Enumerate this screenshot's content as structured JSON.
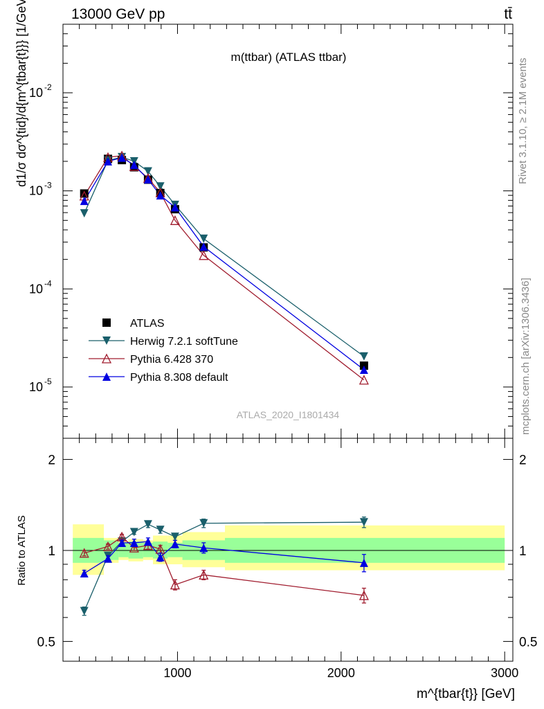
{
  "header": {
    "left": "13000 GeV pp",
    "right": "tt̄"
  },
  "side_labels": {
    "rivet": "Rivet 3.1.10, ≥ 2.1M events",
    "mcplots": "mcplots.cern.ch [arXiv:1306.3436]"
  },
  "chart_data": [
    {
      "type": "line",
      "panel": "main",
      "title": "m(ttbar) (ATLAS ttbar)",
      "ylabel": "d1/σ dσ^{tid}/d{m^{tbar{t}}} [1/GeV]",
      "watermark": "ATLAS_2020_I1801434",
      "yscale": "log",
      "ylim": [
        3e-06,
        0.05
      ],
      "xlim": [
        300,
        3050
      ],
      "ytick_labels": [
        "10^-2",
        "10^-3",
        "10^-4",
        "10^-5"
      ],
      "x": [
        430,
        575,
        660,
        735,
        820,
        895,
        985,
        1160,
        2140
      ],
      "series": [
        {
          "name": "ATLAS",
          "color": "#000000",
          "marker": "square",
          "values": [
            0.00094,
            0.00212,
            0.00206,
            0.00174,
            0.0013,
            0.00095,
            0.00065,
            0.000265,
            1.65e-05
          ]
        },
        {
          "name": "Herwig 7.2.1 softTune",
          "color": "#1a5f6b",
          "marker": "tri-down",
          "values": [
            0.00059,
            0.00204,
            0.00221,
            0.002,
            0.00158,
            0.00111,
            0.00072,
            0.000325,
            2.05e-05
          ]
        },
        {
          "name": "Pythia 6.428 370",
          "color": "#a01c2e",
          "marker": "tri-up-open",
          "values": [
            0.00089,
            0.0022,
            0.00228,
            0.00178,
            0.00135,
            0.00096,
            0.0005,
            0.00022,
            1.18e-05
          ]
        },
        {
          "name": "Pythia 8.308 default",
          "color": "#0000e0",
          "marker": "tri-up",
          "values": [
            0.00079,
            0.002,
            0.00218,
            0.00184,
            0.00131,
            0.0009,
            0.00068,
            0.00027,
            1.5e-05
          ]
        }
      ]
    },
    {
      "type": "line",
      "panel": "ratio",
      "ylabel": "Ratio to ATLAS",
      "xlabel": "m^{tbar{t}} [GeV]",
      "yscale": "log",
      "ylim": [
        0.43,
        2.35
      ],
      "xlim": [
        300,
        3050
      ],
      "ytick_labels": [
        "2",
        "1",
        "0.5"
      ],
      "xtick_labels": [
        "1000",
        "2000",
        "3000"
      ],
      "bands": {
        "edges": [
          360,
          550,
          640,
          700,
          790,
          850,
          940,
          1030,
          1290,
          3000
        ],
        "inner": [
          [
            0.91,
            1.1
          ],
          [
            0.93,
            1.08
          ],
          [
            0.95,
            1.06
          ],
          [
            0.94,
            1.07
          ],
          [
            0.95,
            1.06
          ],
          [
            0.94,
            1.07
          ],
          [
            0.95,
            1.06
          ],
          [
            0.93,
            1.08
          ],
          [
            0.91,
            1.1
          ]
        ],
        "outer": [
          [
            0.83,
            1.22
          ],
          [
            0.91,
            1.1
          ],
          [
            0.93,
            1.07
          ],
          [
            0.92,
            1.09
          ],
          [
            0.93,
            1.08
          ],
          [
            0.9,
            1.12
          ],
          [
            0.9,
            1.12
          ],
          [
            0.88,
            1.15
          ],
          [
            0.86,
            1.21
          ]
        ]
      },
      "series": [
        {
          "name": "Herwig 7.2.1 softTune",
          "color": "#1a5f6b",
          "marker": "tri-down",
          "values": [
            0.63,
            0.96,
            1.07,
            1.15,
            1.22,
            1.17,
            1.11,
            1.23,
            1.24
          ],
          "err": [
            0.02,
            0.02,
            0.02,
            0.02,
            0.03,
            0.03,
            0.03,
            0.04,
            0.05
          ]
        },
        {
          "name": "Pythia 6.428 370",
          "color": "#a01c2e",
          "marker": "tri-up-open",
          "values": [
            0.98,
            1.03,
            1.11,
            1.02,
            1.04,
            1.01,
            0.77,
            0.83,
            0.71
          ],
          "err": [
            0.02,
            0.02,
            0.02,
            0.02,
            0.03,
            0.03,
            0.03,
            0.03,
            0.04
          ]
        },
        {
          "name": "Pythia 8.308 default",
          "color": "#0000e0",
          "marker": "tri-up",
          "values": [
            0.84,
            0.94,
            1.06,
            1.06,
            1.07,
            0.95,
            1.05,
            1.02,
            0.91
          ],
          "err": [
            0.02,
            0.02,
            0.02,
            0.03,
            0.03,
            0.03,
            0.03,
            0.04,
            0.06
          ]
        }
      ]
    }
  ]
}
